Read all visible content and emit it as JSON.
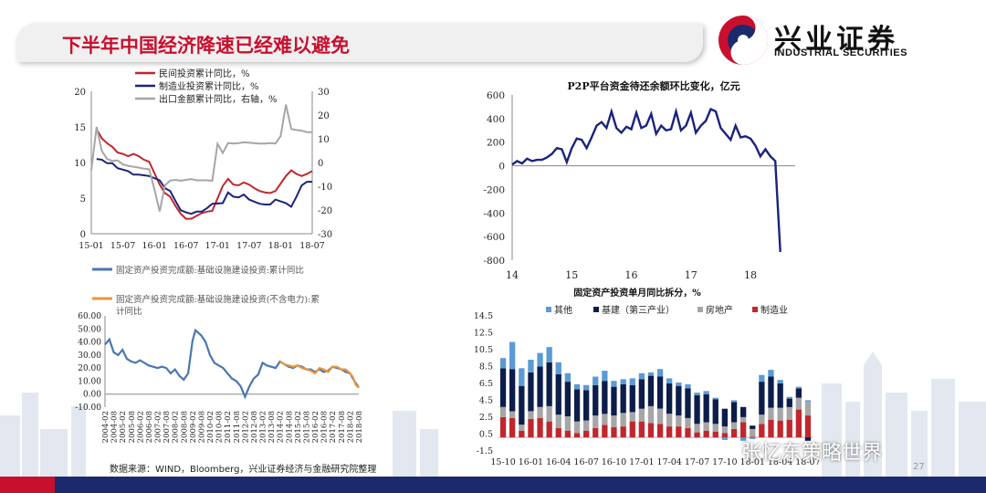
{
  "slide": {
    "title": "下半年中国经济降速已经难以避免",
    "logo_cn": "兴业证券",
    "logo_en": "INDUSTRIAL SECURITIES",
    "source": "数据来源：WIND，Bloomberg，兴业证券经济与金融研究院整理",
    "page_number": "27",
    "watermark": "张忆东策略世界",
    "colors": {
      "brand_red": "#c8102e",
      "brand_navy": "#1a2a6c"
    }
  },
  "chart_data": [
    {
      "id": "investment",
      "type": "line",
      "x_ticks": [
        "15-01",
        "15-07",
        "16-01",
        "16-07",
        "17-01",
        "17-07",
        "18-01",
        "18-07"
      ],
      "ylim": [
        0,
        20
      ],
      "y_ticks": [
        "0",
        "5",
        "10",
        "15",
        "20"
      ],
      "y2lim": [
        -30,
        30
      ],
      "y2_ticks": [
        "-30",
        "-20",
        "-10",
        "0",
        "10",
        "20",
        "30"
      ],
      "series": [
        {
          "name": "民间投资累计同比，%",
          "color": "#c0272d",
          "axis": "left",
          "x": [
            "2015-02",
            "2015-03",
            "2015-04",
            "2015-05",
            "2015-06",
            "2015-07",
            "2015-08",
            "2015-09",
            "2015-10",
            "2015-11",
            "2015-12",
            "2016-02",
            "2016-03",
            "2016-04",
            "2016-05",
            "2016-06",
            "2016-07",
            "2016-08",
            "2016-09",
            "2016-10",
            "2016-11",
            "2016-12",
            "2017-02",
            "2017-03",
            "2017-04",
            "2017-05",
            "2017-06",
            "2017-07",
            "2017-08",
            "2017-09",
            "2017-10",
            "2017-11",
            "2017-12",
            "2018-02",
            "2018-03",
            "2018-04",
            "2018-05",
            "2018-06",
            "2018-07"
          ],
          "values": [
            14.7,
            13.4,
            12.7,
            12.2,
            11.4,
            11.2,
            10.9,
            11.2,
            10.9,
            10.4,
            10.1,
            6.9,
            5.7,
            5.2,
            3.9,
            2.8,
            2.1,
            2.1,
            2.5,
            2.9,
            3.1,
            3.2,
            6.7,
            7.7,
            6.9,
            6.8,
            7.2,
            6.9,
            6.4,
            6.0,
            5.8,
            5.7,
            6.0,
            8.1,
            8.9,
            8.4,
            8.1,
            8.4,
            8.8
          ]
        },
        {
          "name": "制造业投资累计同比，%",
          "color": "#1a237e",
          "axis": "left",
          "x": [
            "2015-02",
            "2015-03",
            "2015-04",
            "2015-05",
            "2015-06",
            "2015-07",
            "2015-08",
            "2015-09",
            "2015-10",
            "2015-11",
            "2015-12",
            "2016-02",
            "2016-03",
            "2016-04",
            "2016-05",
            "2016-06",
            "2016-07",
            "2016-08",
            "2016-09",
            "2016-10",
            "2016-11",
            "2016-12",
            "2017-02",
            "2017-03",
            "2017-04",
            "2017-05",
            "2017-06",
            "2017-07",
            "2017-08",
            "2017-09",
            "2017-10",
            "2017-11",
            "2017-12",
            "2018-02",
            "2018-03",
            "2018-04",
            "2018-05",
            "2018-06",
            "2018-07"
          ],
          "values": [
            10.5,
            10.4,
            9.9,
            9.9,
            9.2,
            9.0,
            8.8,
            8.3,
            8.3,
            8.2,
            8.1,
            7.5,
            6.4,
            6.0,
            4.6,
            3.3,
            3.0,
            2.8,
            3.1,
            3.1,
            3.6,
            4.2,
            4.3,
            5.8,
            5.2,
            5.1,
            5.5,
            4.8,
            4.5,
            4.2,
            4.1,
            4.1,
            4.8,
            4.3,
            3.8,
            5.2,
            6.8,
            7.3,
            7.3
          ]
        },
        {
          "name": "出口金额累计同比，右轴，%",
          "color": "#a6a6a6",
          "axis": "right",
          "x": [
            "2015-01",
            "2015-02",
            "2015-03",
            "2015-04",
            "2015-05",
            "2015-06",
            "2015-07",
            "2015-08",
            "2015-09",
            "2015-10",
            "2015-11",
            "2015-12",
            "2016-01",
            "2016-02",
            "2016-03",
            "2016-04",
            "2016-05",
            "2016-06",
            "2016-07",
            "2016-08",
            "2016-09",
            "2016-10",
            "2016-11",
            "2016-12",
            "2017-01",
            "2017-02",
            "2017-03",
            "2017-04",
            "2017-05",
            "2017-06",
            "2017-07",
            "2017-08",
            "2017-09",
            "2017-10",
            "2017-11",
            "2017-12",
            "2018-01",
            "2018-02",
            "2018-03",
            "2018-04",
            "2018-05",
            "2018-06",
            "2018-07"
          ],
          "values": [
            -3.3,
            15.0,
            4.9,
            1.5,
            0.7,
            0.9,
            -0.8,
            -1.4,
            -1.8,
            -2.1,
            -2.6,
            -2.8,
            -11.2,
            -20.6,
            -9.6,
            -7.6,
            -7.3,
            -7.7,
            -7.3,
            -7.0,
            -7.5,
            -7.5,
            -7.5,
            -7.7,
            7.9,
            4.0,
            8.2,
            8.0,
            8.2,
            8.5,
            8.4,
            8.1,
            8.0,
            8.0,
            8.2,
            8.0,
            11.1,
            24.4,
            14.1,
            13.7,
            13.4,
            12.8,
            12.8
          ]
        }
      ]
    },
    {
      "id": "infrastructure",
      "type": "line",
      "ylim": [
        -10,
        60
      ],
      "y_ticks": [
        "-10.00",
        "0.00",
        "10.00",
        "20.00",
        "30.00",
        "40.00",
        "50.00",
        "60.00"
      ],
      "x_ticks": [
        "2004-02",
        "2004-08",
        "2005-02",
        "2005-08",
        "2006-02",
        "2006-08",
        "2007-02",
        "2007-08",
        "2008-02",
        "2008-08",
        "2009-02",
        "2009-08",
        "2010-02",
        "2010-08",
        "2011-02",
        "2011-08",
        "2012-02",
        "2012-08",
        "2013-02",
        "2013-08",
        "2014-02",
        "2014-08",
        "2015-02",
        "2015-08",
        "2016-02",
        "2016-08",
        "2017-02",
        "2017-08",
        "2018-02",
        "2018-08"
      ],
      "series": [
        {
          "name": "固定资产投资完成额:基础设施建设投资:累计同比",
          "color": "#4a76b3",
          "x": [
            "2004-02",
            "2004-05",
            "2004-08",
            "2004-11",
            "2005-02",
            "2005-05",
            "2005-08",
            "2005-11",
            "2006-02",
            "2006-05",
            "2006-08",
            "2006-11",
            "2007-02",
            "2007-05",
            "2007-08",
            "2007-11",
            "2008-02",
            "2008-05",
            "2008-08",
            "2008-11",
            "2009-02",
            "2009-04",
            "2009-06",
            "2009-08",
            "2009-11",
            "2010-02",
            "2010-05",
            "2010-08",
            "2010-11",
            "2011-02",
            "2011-05",
            "2011-08",
            "2011-11",
            "2012-02",
            "2012-05",
            "2012-08",
            "2012-11",
            "2013-02",
            "2013-05",
            "2013-08",
            "2013-11",
            "2014-02",
            "2014-05",
            "2014-08",
            "2014-11",
            "2015-02",
            "2015-05",
            "2015-08",
            "2015-11",
            "2016-02",
            "2016-05",
            "2016-08",
            "2016-11",
            "2017-02",
            "2017-05",
            "2017-08",
            "2017-11",
            "2018-02",
            "2018-05",
            "2018-08"
          ],
          "values": [
            38,
            42,
            32,
            30,
            34,
            27,
            25,
            24,
            26,
            24,
            22,
            21,
            20,
            21,
            20,
            16,
            19,
            14,
            11,
            16,
            41,
            49,
            47,
            45,
            40,
            30,
            24,
            22,
            20,
            16,
            12,
            10,
            6,
            -2,
            6,
            12,
            15,
            24,
            22,
            21,
            20,
            25,
            23,
            21,
            20,
            22,
            21,
            19,
            19,
            17,
            19,
            17,
            18,
            21,
            20,
            19,
            17,
            16,
            10,
            5
          ]
        },
        {
          "name": "固定资产投资完成额:基础设施建设投资(不含电力):累计同比",
          "color": "#e8953b",
          "x": [
            "2014-02",
            "2014-05",
            "2014-08",
            "2014-11",
            "2015-02",
            "2015-05",
            "2015-08",
            "2015-11",
            "2016-02",
            "2016-05",
            "2016-08",
            "2016-11",
            "2017-02",
            "2017-05",
            "2017-08",
            "2017-11",
            "2018-02",
            "2018-04",
            "2018-06",
            "2018-08"
          ],
          "values": [
            25,
            23,
            22,
            21,
            22,
            20,
            19,
            18,
            16,
            20,
            19,
            17,
            21,
            21,
            19,
            19,
            16,
            13,
            7,
            5
          ]
        }
      ]
    },
    {
      "id": "p2p",
      "type": "line",
      "title": "P2P平台资金待还余额环比变化，亿元",
      "ylim": [
        -800,
        600
      ],
      "y_ticks": [
        "-800",
        "-600",
        "-400",
        "-200",
        "0",
        "200",
        "400",
        "600"
      ],
      "x_ticks": [
        "14",
        "15",
        "16",
        "17",
        "18"
      ],
      "series": [
        {
          "name": "P2P平台资金待还余额环比变化，亿元",
          "color": "#1a237e",
          "x": [
            "2014-01",
            "2014-02",
            "2014-03",
            "2014-04",
            "2014-05",
            "2014-06",
            "2014-07",
            "2014-08",
            "2014-09",
            "2014-10",
            "2014-11",
            "2014-12",
            "2015-01",
            "2015-02",
            "2015-03",
            "2015-04",
            "2015-05",
            "2015-06",
            "2015-07",
            "2015-08",
            "2015-09",
            "2015-10",
            "2015-11",
            "2015-12",
            "2016-01",
            "2016-02",
            "2016-03",
            "2016-04",
            "2016-05",
            "2016-06",
            "2016-07",
            "2016-08",
            "2016-09",
            "2016-10",
            "2016-11",
            "2016-12",
            "2017-01",
            "2017-02",
            "2017-03",
            "2017-04",
            "2017-05",
            "2017-06",
            "2017-07",
            "2017-08",
            "2017-09",
            "2017-10",
            "2017-11",
            "2017-12",
            "2018-01",
            "2018-02",
            "2018-03",
            "2018-04",
            "2018-05",
            "2018-06",
            "2018-07"
          ],
          "values": [
            10,
            40,
            20,
            60,
            40,
            50,
            50,
            70,
            100,
            150,
            140,
            30,
            150,
            230,
            220,
            150,
            240,
            340,
            370,
            320,
            460,
            320,
            280,
            330,
            310,
            450,
            320,
            340,
            440,
            270,
            340,
            300,
            310,
            460,
            300,
            340,
            450,
            280,
            340,
            380,
            480,
            460,
            320,
            270,
            220,
            340,
            240,
            250,
            230,
            170,
            80,
            140,
            80,
            40,
            -730
          ]
        }
      ]
    },
    {
      "id": "fai_split",
      "type": "bar",
      "title": "固定资产投资单月同比拆分，%",
      "ylim": [
        -1.5,
        14.5
      ],
      "y_ticks": [
        "-1.5",
        "0.5",
        "2.5",
        "4.5",
        "6.5",
        "8.5",
        "10.5",
        "12.5",
        "14.5"
      ],
      "x_ticks": [
        "15-10",
        "16-01",
        "16-04",
        "16-07",
        "16-10",
        "17-01",
        "17-04",
        "17-07",
        "17-10",
        "18-01",
        "18-04",
        "18-07"
      ],
      "categories": [
        "15-10",
        "15-11",
        "15-12",
        "16-01",
        "16-02",
        "16-03",
        "16-04",
        "16-05",
        "16-06",
        "16-07",
        "16-08",
        "16-09",
        "16-10",
        "16-11",
        "16-12",
        "17-01",
        "17-02",
        "17-03",
        "17-04",
        "17-05",
        "17-06",
        "17-07",
        "17-08",
        "17-09",
        "17-10",
        "17-11",
        "17-12",
        "18-01",
        "18-02",
        "18-03",
        "18-04",
        "18-05",
        "18-06",
        "18-07"
      ],
      "series": [
        {
          "name": "其他",
          "color": "#5b9bd5",
          "values": [
            1.2,
            3.2,
            2.1,
            1.5,
            1.6,
            1.8,
            1.4,
            1.0,
            0.6,
            0.6,
            1.0,
            1.2,
            0.7,
            0.6,
            0.8,
            0.7,
            0.4,
            0.9,
            0.6,
            0.4,
            0.5,
            0.3,
            0.4,
            0.2,
            -0.3,
            0.2,
            -0.4,
            -0.2,
            0.8,
            0.8,
            0.4,
            0.2,
            0.2,
            0.2
          ]
        },
        {
          "name": "基建（第三产业）",
          "color": "#0d1d4a",
          "values": [
            4.6,
            5.0,
            4.6,
            4.6,
            4.8,
            5.2,
            4.8,
            4.1,
            3.8,
            3.6,
            3.6,
            3.9,
            3.4,
            3.4,
            3.2,
            3.5,
            3.6,
            3.8,
            3.6,
            3.5,
            3.5,
            3.4,
            3.3,
            2.9,
            2.1,
            2.4,
            1.2,
            0.4,
            3.9,
            3.7,
            2.9,
            1.0,
            1.1,
            -0.4
          ]
        },
        {
          "name": "房地产",
          "color": "#a6a6a6",
          "values": [
            1.2,
            0.8,
            0.7,
            0.9,
            1.3,
            1.8,
            1.6,
            1.7,
            1.4,
            1.2,
            1.5,
            1.3,
            1.4,
            1.6,
            1.1,
            1.5,
            2.0,
            1.8,
            1.5,
            1.3,
            1.2,
            1.0,
            1.0,
            0.9,
            0.8,
            0.8,
            0.6,
            0.9,
            1.1,
            1.4,
            1.5,
            1.5,
            1.4,
            1.6
          ]
        },
        {
          "name": "制造业",
          "color": "#c0272d",
          "values": [
            2.4,
            2.3,
            0.8,
            2.2,
            2.3,
            1.9,
            1.1,
            0.8,
            0.5,
            0.8,
            1.1,
            1.5,
            1.2,
            1.3,
            1.9,
            1.9,
            1.7,
            1.6,
            1.3,
            1.3,
            1.1,
            0.6,
            0.8,
            0.7,
            0.5,
            1.0,
            1.8,
            0.1,
            1.6,
            2.1,
            2.0,
            2.1,
            3.3,
            2.6
          ]
        }
      ]
    }
  ]
}
